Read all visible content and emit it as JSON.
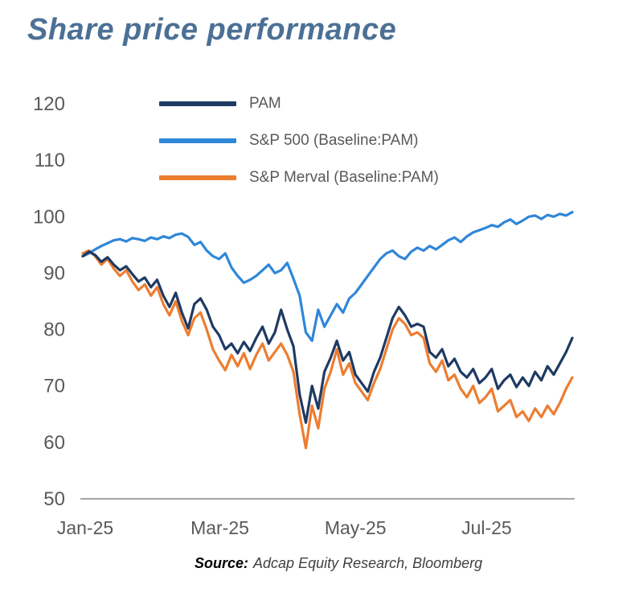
{
  "title": "Share price performance",
  "source": {
    "label": "Source:",
    "text": "Adcap Equity Research, Bloomberg"
  },
  "colors": {
    "title": "#4c7095",
    "axis_text": "#595959",
    "axis_line": "#a6a6a6"
  },
  "chart_data": {
    "type": "line",
    "title": "Share price performance",
    "xlabel": "",
    "ylabel": "",
    "ylim": [
      50,
      120
    ],
    "yticks": [
      50,
      60,
      70,
      80,
      90,
      100,
      110,
      120
    ],
    "xticks": [
      {
        "label": "Jan-25",
        "f": 0.005
      },
      {
        "label": "Mar-25",
        "f": 0.28
      },
      {
        "label": "May-25",
        "f": 0.557
      },
      {
        "label": "Jul-25",
        "f": 0.825
      }
    ],
    "grid": false,
    "legend_position": "top-left-inside",
    "series": [
      {
        "name": "PAM",
        "color": "#1f3a63",
        "values": [
          93.0,
          93.8,
          93.2,
          92.0,
          92.8,
          91.5,
          90.5,
          91.2,
          89.8,
          88.5,
          89.2,
          87.5,
          88.8,
          86.0,
          84.0,
          86.5,
          83.0,
          80.2,
          84.5,
          85.5,
          83.5,
          80.5,
          79.0,
          76.5,
          77.5,
          75.8,
          77.8,
          76.2,
          78.5,
          80.5,
          77.5,
          79.5,
          83.5,
          80.0,
          77.0,
          68.5,
          63.5,
          70.0,
          66.0,
          72.5,
          75.0,
          78.0,
          74.5,
          76.0,
          72.0,
          70.5,
          69.0,
          72.5,
          75.0,
          78.5,
          82.0,
          84.0,
          82.5,
          80.5,
          81.0,
          80.5,
          76.0,
          75.0,
          76.5,
          73.5,
          74.8,
          72.5,
          71.5,
          73.0,
          70.5,
          71.5,
          73.0,
          69.5,
          71.0,
          72.0,
          69.8,
          71.5,
          70.0,
          72.5,
          71.0,
          73.5,
          72.0,
          74.0,
          76.0,
          78.5
        ]
      },
      {
        "name": "S&P 500 (Baseline:PAM)",
        "color": "#2f87d8",
        "values": [
          93.0,
          93.5,
          94.2,
          94.8,
          95.3,
          95.8,
          96.0,
          95.6,
          96.2,
          96.0,
          95.7,
          96.3,
          96.0,
          96.5,
          96.2,
          96.8,
          97.0,
          96.4,
          95.0,
          95.5,
          94.0,
          93.0,
          92.5,
          93.5,
          91.0,
          89.5,
          88.3,
          88.8,
          89.5,
          90.5,
          91.5,
          90.0,
          90.5,
          91.8,
          89.0,
          86.0,
          79.5,
          78.0,
          83.5,
          80.5,
          82.5,
          84.5,
          83.0,
          85.5,
          86.5,
          88.0,
          89.5,
          91.0,
          92.5,
          93.5,
          94.0,
          93.0,
          92.5,
          93.8,
          94.5,
          94.0,
          94.8,
          94.2,
          95.0,
          95.8,
          96.3,
          95.5,
          96.5,
          97.2,
          97.6,
          98.0,
          98.5,
          98.2,
          99.0,
          99.5,
          98.7,
          99.3,
          100.0,
          100.2,
          99.6,
          100.3,
          100.0,
          100.5,
          100.2,
          100.8
        ]
      },
      {
        "name": "S&P Merval (Baseline:PAM)",
        "color": "#ed7d31",
        "values": [
          93.5,
          94.0,
          93.0,
          91.5,
          92.5,
          90.8,
          89.5,
          90.5,
          88.5,
          87.0,
          88.0,
          86.0,
          87.5,
          84.5,
          82.5,
          85.0,
          81.5,
          79.0,
          82.0,
          83.0,
          80.0,
          76.5,
          74.5,
          72.8,
          75.5,
          73.5,
          75.8,
          73.0,
          75.5,
          77.5,
          74.5,
          76.0,
          77.5,
          75.5,
          72.5,
          65.0,
          59.0,
          66.5,
          62.5,
          69.5,
          72.5,
          76.5,
          72.0,
          74.0,
          70.5,
          69.0,
          67.5,
          70.5,
          73.0,
          76.5,
          80.0,
          82.0,
          81.0,
          79.0,
          79.5,
          78.5,
          74.0,
          72.5,
          74.5,
          71.0,
          72.0,
          69.5,
          68.0,
          70.0,
          67.0,
          68.0,
          69.5,
          65.5,
          66.5,
          67.5,
          64.5,
          65.5,
          63.8,
          66.0,
          64.5,
          66.5,
          65.0,
          67.0,
          69.5,
          71.5
        ]
      }
    ]
  }
}
